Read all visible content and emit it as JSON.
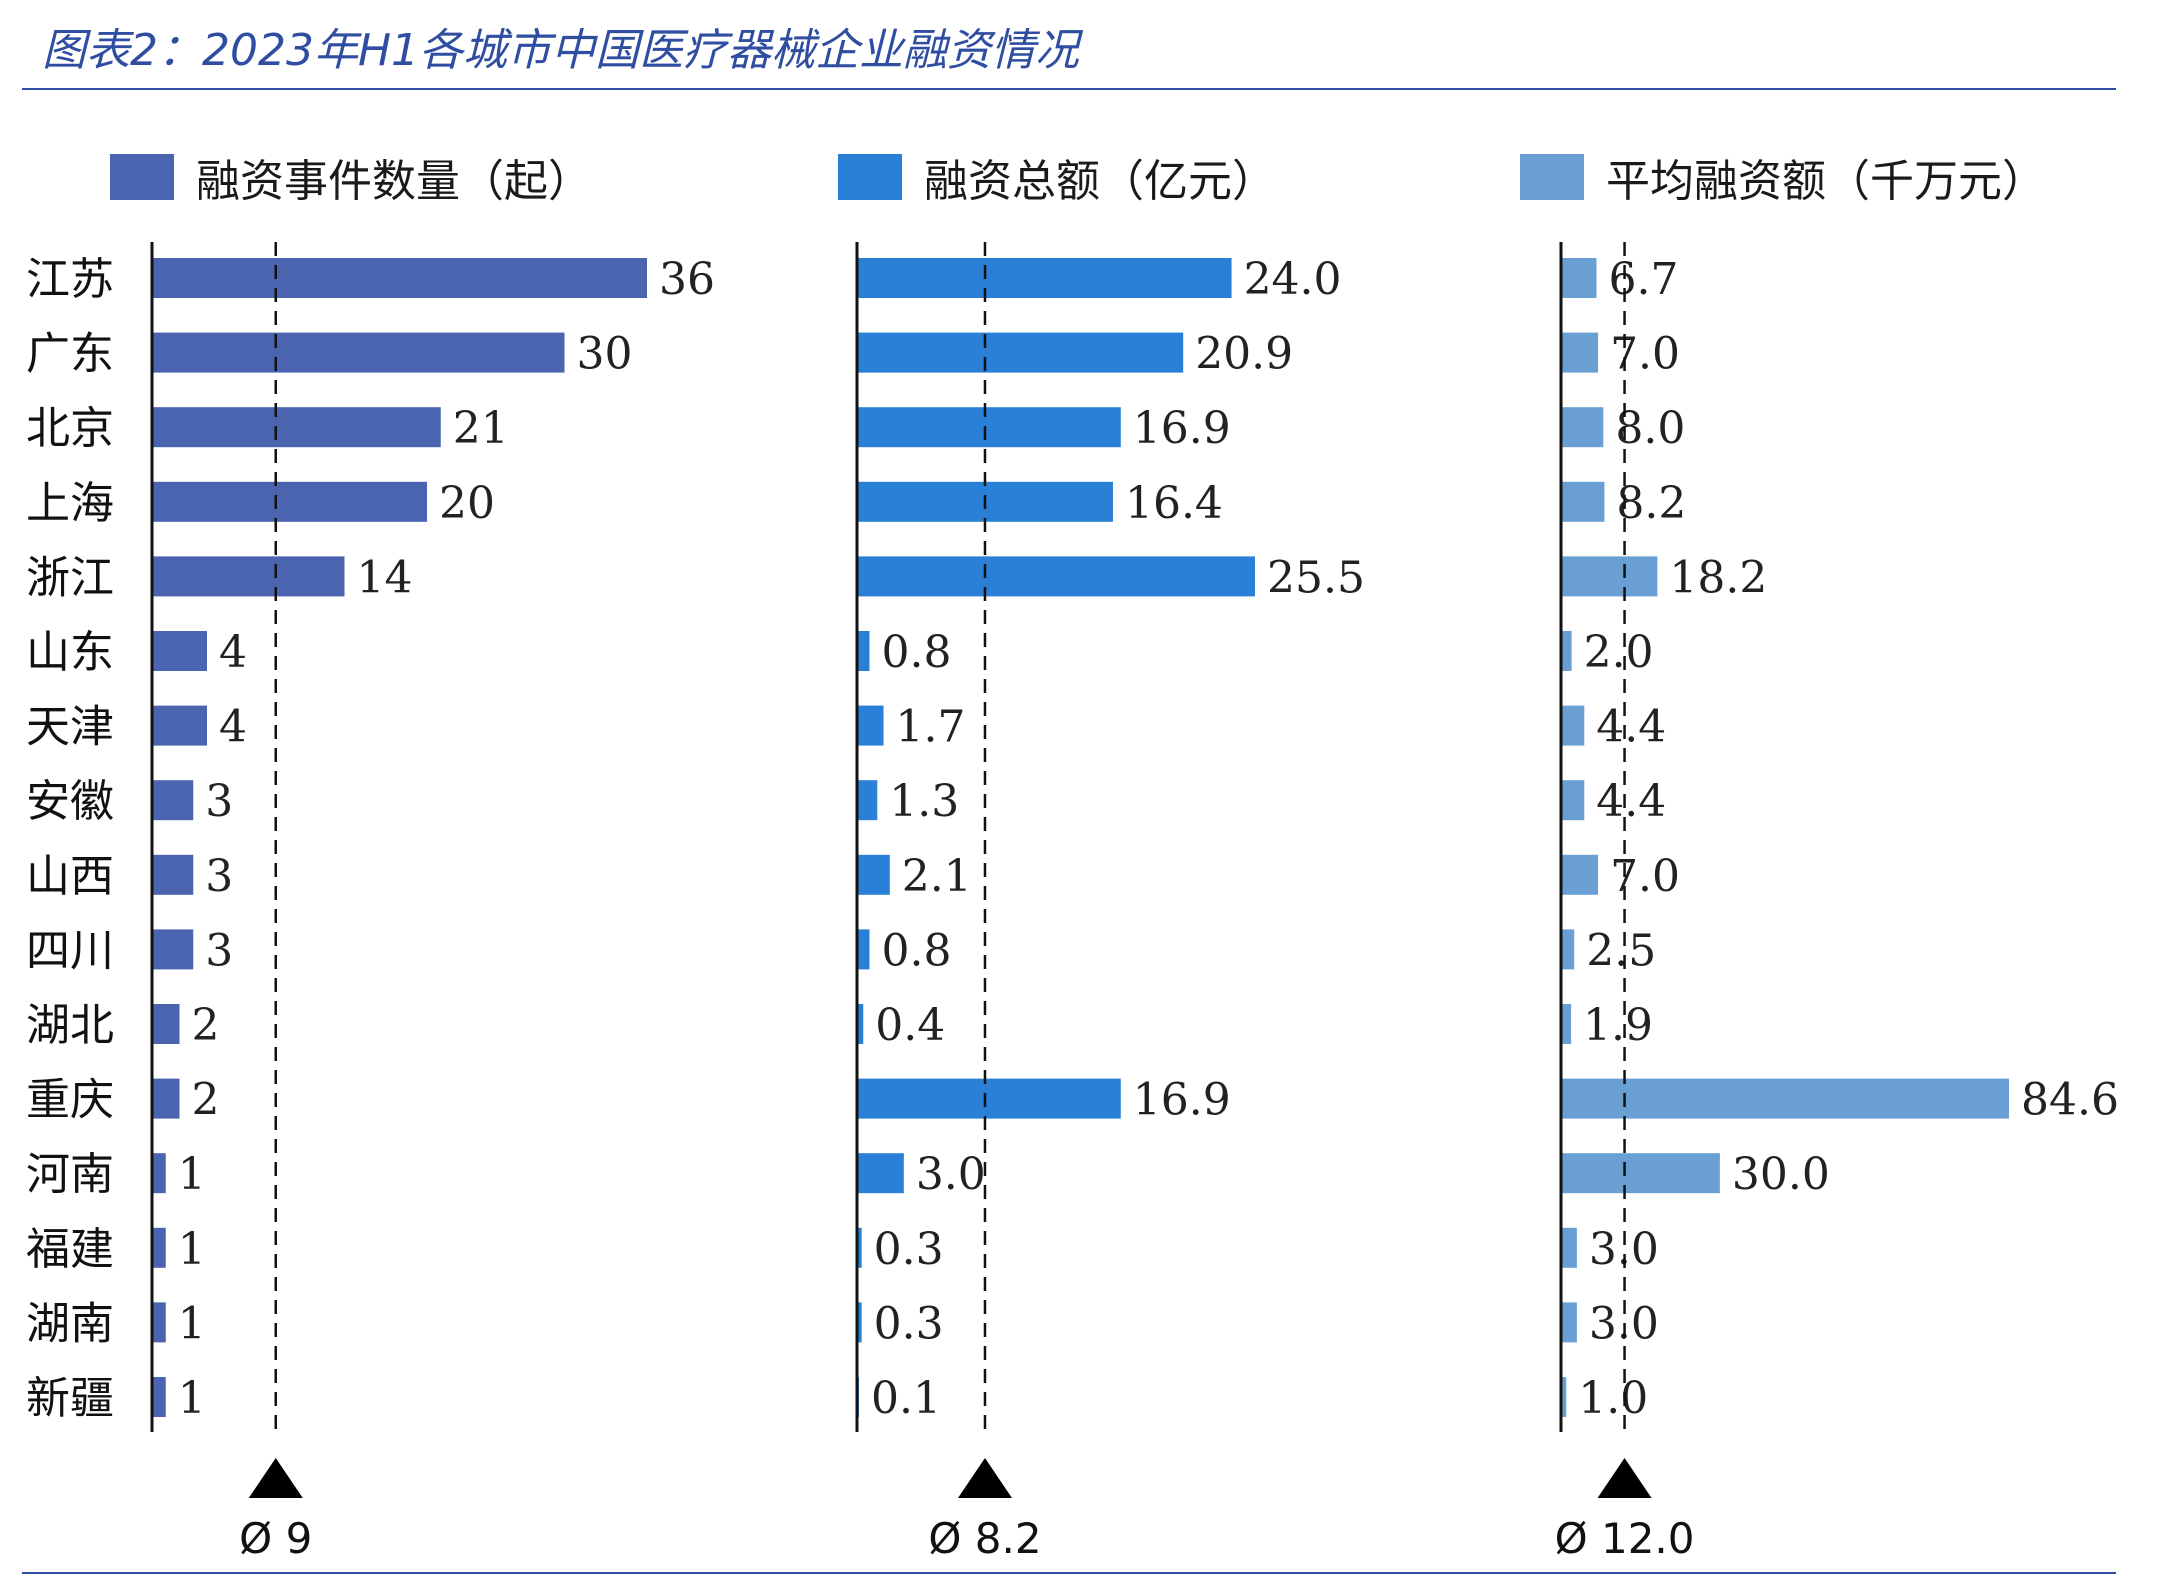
{
  "title": "图表2：2023年H1各城市中国医疗器械企业融资情况",
  "chart_data": {
    "type": "bar",
    "orientation": "horizontal",
    "categories": [
      "江苏",
      "广东",
      "北京",
      "上海",
      "浙江",
      "山东",
      "天津",
      "安徽",
      "山西",
      "四川",
      "湖北",
      "重庆",
      "河南",
      "福建",
      "湖南",
      "新疆"
    ],
    "series": [
      {
        "name": "融资事件数量（起）",
        "color": "#4a64b0",
        "values": [
          36,
          30,
          21,
          20,
          14,
          4,
          4,
          3,
          3,
          3,
          2,
          2,
          1,
          1,
          1,
          1
        ],
        "value_labels": [
          "36",
          "30",
          "21",
          "20",
          "14",
          "4",
          "4",
          "3",
          "3",
          "3",
          "2",
          "2",
          "1",
          "1",
          "1",
          "1"
        ],
        "average": 9,
        "average_label": "Ø 9",
        "xlim": [
          0,
          40
        ]
      },
      {
        "name": "融资总额（亿元）",
        "color": "#2a7fd6",
        "values": [
          24.0,
          20.9,
          16.9,
          16.4,
          25.5,
          0.8,
          1.7,
          1.3,
          2.1,
          0.8,
          0.4,
          16.9,
          3.0,
          0.3,
          0.3,
          0.1
        ],
        "value_labels": [
          "24.0",
          "20.9",
          "16.9",
          "16.4",
          "25.5",
          "0.8",
          "1.7",
          "1.3",
          "2.1",
          "0.8",
          "0.4",
          "16.9",
          "3.0",
          "0.3",
          "0.3",
          "0.1"
        ],
        "average": 8.2,
        "average_label": "Ø 8.2",
        "xlim": [
          0,
          28
        ]
      },
      {
        "name": "平均融资额（千万元）",
        "color": "#6a9fd4",
        "values": [
          6.7,
          7.0,
          8.0,
          8.2,
          18.2,
          2.0,
          4.4,
          4.4,
          7.0,
          2.5,
          1.9,
          84.6,
          30.0,
          3.0,
          3.0,
          1.0
        ],
        "value_labels": [
          "6.7",
          "7.0",
          "8.0",
          "8.2",
          "18.2",
          "2.0",
          "4.4",
          "4.4",
          "7.0",
          "2.5",
          "1.9",
          "84.6",
          "30.0",
          "3.0",
          "3.0",
          "1.0"
        ],
        "average": 12.0,
        "average_label": "Ø 12.0",
        "xlim": [
          0,
          84.6
        ]
      }
    ],
    "reference_line": "dashed vertical line at series average",
    "legend_placement": "top"
  }
}
